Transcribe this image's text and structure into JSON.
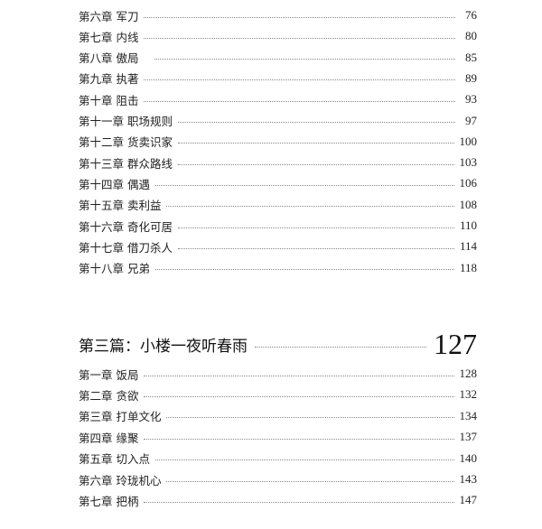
{
  "part2_chapters": [
    {
      "title": "第六章 军刀",
      "page": "76"
    },
    {
      "title": "第七章 内线",
      "page": "80"
    },
    {
      "title": "第八章 傲局   ",
      "page": "85"
    },
    {
      "title": "第九章 执著",
      "page": "89"
    },
    {
      "title": "第十章 阻击",
      "page": "93"
    },
    {
      "title": "第十一章 职场规则",
      "page": "97"
    },
    {
      "title": "第十二章 货卖识家",
      "page": "100"
    },
    {
      "title": "第十三章 群众路线",
      "page": "103"
    },
    {
      "title": "第十四章 偶遇",
      "page": "106"
    },
    {
      "title": "第十五章 卖利益",
      "page": "108"
    },
    {
      "title": "第十六章 奇化可居",
      "page": "110"
    },
    {
      "title": "第十七章 借刀杀人",
      "page": "114"
    },
    {
      "title": "第十八章 兄弟",
      "page": "118"
    }
  ],
  "part3": {
    "title": "第三篇：小楼一夜听春雨",
    "page": "127"
  },
  "part3_chapters": [
    {
      "title": "第一章 饭局",
      "page": "128"
    },
    {
      "title": "第二章 贪欲",
      "page": "132"
    },
    {
      "title": "第三章 打单文化",
      "page": "134"
    },
    {
      "title": "第四章 缘聚",
      "page": "137"
    },
    {
      "title": "第五章 切入点",
      "page": "140"
    },
    {
      "title": "第六章 玲珑机心",
      "page": "143"
    },
    {
      "title": "第七章 把柄",
      "page": "147"
    }
  ]
}
